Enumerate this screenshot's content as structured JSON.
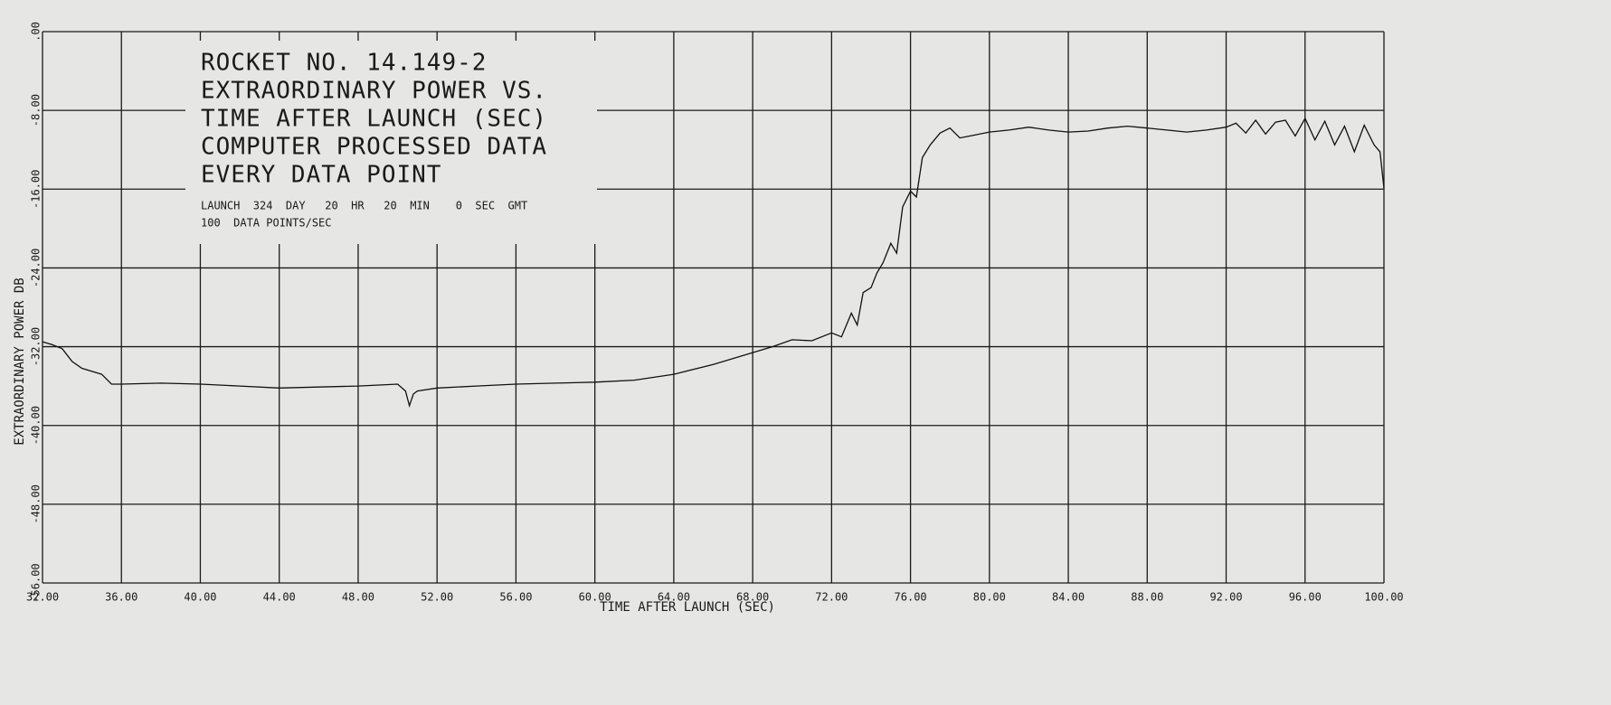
{
  "chart_data": {
    "type": "line",
    "title_lines": [
      "ROCKET NO. 14.149-2",
      "EXTRAORDINARY POWER VS.",
      "TIME AFTER LAUNCH (SEC)",
      "COMPUTER PROCESSED DATA",
      "EVERY DATA POINT"
    ],
    "subtitle_lines": [
      "LAUNCH  324  DAY   20  HR   20  MIN    0  SEC  GMT",
      "100  DATA POINTS/SEC"
    ],
    "xlabel": "TIME AFTER LAUNCH (SEC)",
    "ylabel": "EXTRAORDINARY POWER DB",
    "color": "#111111",
    "grid": true,
    "xlim": [
      32,
      100
    ],
    "ylim": [
      -56,
      0
    ],
    "xticks": [
      {
        "value": 32,
        "label": "32.00"
      },
      {
        "value": 36,
        "label": "36.00"
      },
      {
        "value": 40,
        "label": "40.00"
      },
      {
        "value": 44,
        "label": "44.00"
      },
      {
        "value": 48,
        "label": "48.00"
      },
      {
        "value": 52,
        "label": "52.00"
      },
      {
        "value": 56,
        "label": "56.00"
      },
      {
        "value": 60,
        "label": "60.00"
      },
      {
        "value": 64,
        "label": "64.00"
      },
      {
        "value": 68,
        "label": "68.00"
      },
      {
        "value": 72,
        "label": "72.00"
      },
      {
        "value": 76,
        "label": "76.00"
      },
      {
        "value": 80,
        "label": "80.00"
      },
      {
        "value": 84,
        "label": "84.00"
      },
      {
        "value": 88,
        "label": "88.00"
      },
      {
        "value": 92,
        "label": "92.00"
      },
      {
        "value": 96,
        "label": "96.00"
      },
      {
        "value": 100,
        "label": "100.00"
      }
    ],
    "yticks": [
      {
        "value": 0,
        "label": ".00"
      },
      {
        "value": -8,
        "label": "-8.00"
      },
      {
        "value": -16,
        "label": "-16.00"
      },
      {
        "value": -24,
        "label": "-24.00"
      },
      {
        "value": -32,
        "label": "-32.00"
      },
      {
        "value": -40,
        "label": "-40.00"
      },
      {
        "value": -48,
        "label": "-48.00"
      },
      {
        "value": -56,
        "label": "-56.00"
      }
    ],
    "x": [
      32,
      32.5,
      33,
      33.5,
      34,
      35,
      35.5,
      36,
      38,
      40,
      42,
      44,
      46,
      48,
      50,
      50.4,
      50.6,
      50.8,
      51,
      52,
      54,
      56,
      58,
      60,
      62,
      64,
      66,
      68,
      69,
      70,
      71,
      72,
      72.5,
      73,
      73.3,
      73.6,
      74,
      74.3,
      74.6,
      75,
      75.3,
      75.6,
      76,
      76.3,
      76.6,
      77,
      77.5,
      78,
      78.5,
      79,
      80,
      81,
      82,
      83,
      84,
      85,
      86,
      87,
      88,
      89,
      90,
      91,
      92,
      92.5,
      93,
      93.5,
      94,
      94.5,
      95,
      95.5,
      96,
      96.5,
      97,
      97.5,
      98,
      98.5,
      99,
      99.5,
      99.8,
      100
    ],
    "values": [
      -31.5,
      -31.8,
      -32.2,
      -33.5,
      -34.2,
      -34.8,
      -35.8,
      -35.8,
      -35.7,
      -35.8,
      -36.0,
      -36.2,
      -36.1,
      -36.0,
      -35.8,
      -36.5,
      -38.0,
      -36.8,
      -36.5,
      -36.2,
      -36.0,
      -35.8,
      -35.7,
      -35.6,
      -35.4,
      -34.8,
      -33.8,
      -32.6,
      -32.0,
      -31.3,
      -31.4,
      -30.6,
      -31.0,
      -28.6,
      -29.8,
      -26.5,
      -26.0,
      -24.5,
      -23.5,
      -21.5,
      -22.5,
      -17.8,
      -16.2,
      -16.8,
      -12.8,
      -11.5,
      -10.3,
      -9.8,
      -10.8,
      -10.6,
      -10.2,
      -10.0,
      -9.7,
      -10.0,
      -10.2,
      -10.1,
      -9.8,
      -9.6,
      -9.8,
      -10.0,
      -10.2,
      -10.0,
      -9.7,
      -9.3,
      -10.3,
      -9.0,
      -10.4,
      -9.2,
      -9.0,
      -10.6,
      -8.8,
      -11.0,
      -9.1,
      -11.5,
      -9.6,
      -12.2,
      -9.5,
      -11.5,
      -12.2,
      -15.9
    ]
  }
}
